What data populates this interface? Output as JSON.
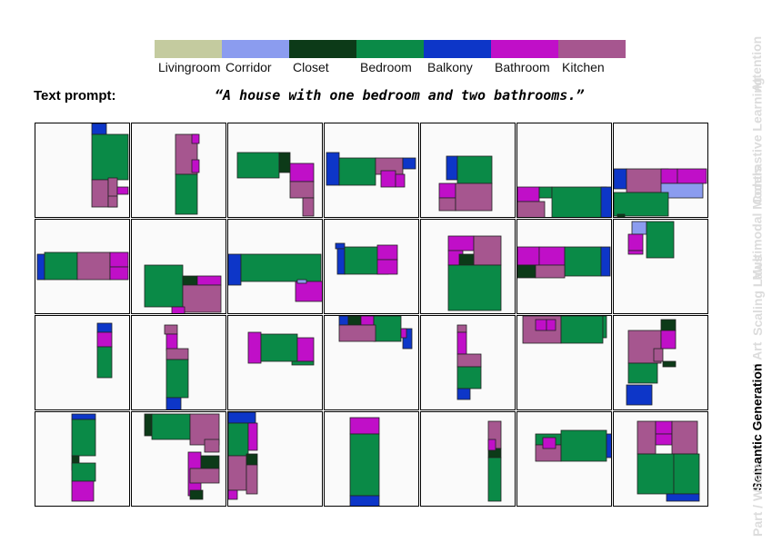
{
  "legend": [
    {
      "label": "Livingroom",
      "color": "#c4cb9f"
    },
    {
      "label": "Corridor",
      "color": "#8b9cef"
    },
    {
      "label": "Closet",
      "color": "#0c3a18"
    },
    {
      "label": "Bedroom",
      "color": "#0a8a47"
    },
    {
      "label": "Balkony",
      "color": "#0d36c8"
    },
    {
      "label": "Bathroom",
      "color": "#c00fc8"
    },
    {
      "label": "Kitchen",
      "color": "#a6568f"
    }
  ],
  "prompt": {
    "label": "Text prompt:",
    "text": "“A house with one bedroom and two bathrooms.”"
  },
  "sidebar": [
    {
      "label": "Attention",
      "active": false
    },
    {
      "label": "Contrastive Learning",
      "active": false
    },
    {
      "label": "Multimodal Models",
      "active": false
    },
    {
      "label": "Scaling Laws",
      "active": false
    },
    {
      "label": "AI Art",
      "active": false
    },
    {
      "label": "Semantic Generation",
      "active": true
    },
    {
      "label": "Part / Whole",
      "active": false
    }
  ],
  "grid": {
    "rows": 4,
    "cols": 7
  }
}
